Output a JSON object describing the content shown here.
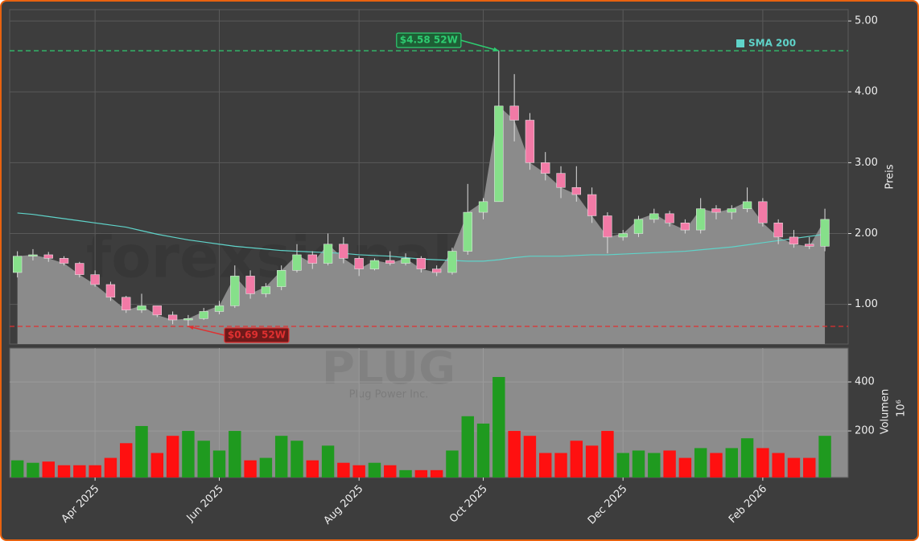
{
  "chart_data": {
    "type": "candlestick",
    "watermark": "forexsignale.trade",
    "symbol": "PLUG",
    "company": "Plug Power Inc.",
    "categories": [
      null,
      null,
      null,
      null,
      null,
      "Apr 2025",
      null,
      null,
      null,
      null,
      null,
      null,
      null,
      "Jun 2025",
      null,
      null,
      null,
      null,
      null,
      null,
      null,
      null,
      "Aug 2025",
      null,
      null,
      null,
      null,
      null,
      null,
      null,
      "Oct 2025",
      null,
      null,
      null,
      null,
      null,
      null,
      null,
      null,
      "Dec 2025",
      null,
      null,
      null,
      null,
      null,
      null,
      null,
      null,
      "Feb 2026",
      null,
      null,
      null,
      null,
      null
    ],
    "open": [
      1.45,
      1.68,
      1.7,
      1.65,
      1.58,
      1.42,
      1.28,
      1.1,
      0.92,
      0.98,
      0.85,
      0.78,
      0.8,
      0.9,
      0.98,
      1.4,
      1.15,
      1.25,
      1.48,
      1.7,
      1.58,
      1.85,
      1.65,
      1.5,
      1.62,
      1.58,
      1.65,
      1.5,
      1.45,
      1.75,
      2.3,
      2.45,
      3.8,
      3.6,
      3.0,
      2.85,
      2.65,
      2.55,
      2.25,
      1.95,
      2.0,
      2.2,
      2.28,
      2.15,
      2.05,
      2.35,
      2.3,
      2.35,
      2.45,
      2.15,
      1.95,
      1.85,
      1.82,
      null
    ],
    "high": [
      1.75,
      1.78,
      1.74,
      1.68,
      1.6,
      1.48,
      1.32,
      1.12,
      1.15,
      0.98,
      0.9,
      0.85,
      0.95,
      1.05,
      1.55,
      1.48,
      1.3,
      1.55,
      1.85,
      1.75,
      2.0,
      1.95,
      1.68,
      1.65,
      1.75,
      1.72,
      1.68,
      1.55,
      1.8,
      2.7,
      2.5,
      4.58,
      4.25,
      3.7,
      3.15,
      2.95,
      2.95,
      2.65,
      2.3,
      2.05,
      2.25,
      2.35,
      2.32,
      2.2,
      2.5,
      2.4,
      2.4,
      2.65,
      2.5,
      2.2,
      2.05,
      1.95,
      2.35,
      null
    ],
    "low": [
      1.38,
      1.62,
      1.6,
      1.55,
      1.38,
      1.25,
      1.05,
      0.88,
      0.88,
      0.82,
      0.72,
      0.69,
      0.78,
      0.86,
      0.95,
      1.08,
      1.1,
      1.2,
      1.45,
      1.5,
      1.55,
      1.58,
      1.4,
      1.48,
      1.55,
      1.55,
      1.45,
      1.4,
      1.42,
      1.7,
      2.2,
      2.45,
      3.3,
      2.9,
      2.75,
      2.5,
      2.45,
      2.15,
      1.72,
      1.9,
      1.95,
      2.15,
      2.1,
      2.0,
      2.0,
      2.2,
      2.2,
      2.3,
      2.1,
      1.85,
      1.8,
      1.78,
      1.75,
      null
    ],
    "close": [
      1.68,
      1.7,
      1.65,
      1.58,
      1.42,
      1.28,
      1.1,
      0.92,
      0.98,
      0.85,
      0.78,
      0.8,
      0.9,
      0.98,
      1.4,
      1.15,
      1.25,
      1.48,
      1.7,
      1.58,
      1.85,
      1.65,
      1.5,
      1.62,
      1.58,
      1.65,
      1.5,
      1.45,
      1.75,
      2.3,
      2.45,
      3.8,
      3.6,
      3.0,
      2.85,
      2.65,
      2.55,
      2.25,
      1.95,
      2.0,
      2.2,
      2.28,
      2.15,
      2.05,
      2.35,
      2.3,
      2.35,
      2.45,
      2.15,
      1.95,
      1.85,
      1.82,
      2.2,
      null
    ],
    "up_color": "#86e08a",
    "down_color": "#f27aa6",
    "area_color": "#8b8b8b",
    "ylim": [
      0.44,
      5.16
    ],
    "yticks": [
      {
        "value": 1,
        "label": "1.00"
      },
      {
        "value": 2,
        "label": "2.00"
      },
      {
        "value": 3,
        "label": "3.00"
      },
      {
        "value": 4,
        "label": "4.00"
      },
      {
        "value": 5,
        "label": "5.00"
      }
    ],
    "ylabel": "Preis",
    "grid": true,
    "legend": "upper right",
    "series": [
      {
        "name": "SMA 200",
        "color": "#5fd3c9",
        "values": [
          2.29,
          2.27,
          2.24,
          2.21,
          2.18,
          2.15,
          2.12,
          2.09,
          2.04,
          1.99,
          1.95,
          1.91,
          1.88,
          1.85,
          1.82,
          1.8,
          1.78,
          1.76,
          1.75,
          1.74,
          1.73,
          1.72,
          1.7,
          1.69,
          1.68,
          1.66,
          1.64,
          1.63,
          1.62,
          1.61,
          1.61,
          1.63,
          1.66,
          1.68,
          1.68,
          1.68,
          1.69,
          1.7,
          1.7,
          1.71,
          1.72,
          1.73,
          1.74,
          1.75,
          1.77,
          1.79,
          1.81,
          1.84,
          1.87,
          1.9,
          1.93,
          1.96,
          1.99,
          null
        ]
      }
    ],
    "annotations": [
      {
        "text": "$4.58 52W",
        "value": 4.58,
        "color": "#2ecc71"
      },
      {
        "text": "$0.69 52W",
        "value": 0.69,
        "color": "#e03030"
      }
    ],
    "volume": {
      "values": [
        80,
        70,
        75,
        60,
        60,
        60,
        90,
        150,
        220,
        110,
        180,
        200,
        160,
        120,
        200,
        80,
        90,
        180,
        160,
        80,
        140,
        70,
        60,
        70,
        60,
        40,
        40,
        40,
        120,
        260,
        230,
        420,
        200,
        180,
        110,
        110,
        160,
        140,
        200,
        110,
        120,
        110,
        120,
        90,
        130,
        110,
        130,
        170,
        130,
        110,
        90,
        90,
        180,
        null
      ],
      "ylim": [
        10,
        538
      ],
      "yticks": [
        200,
        400
      ],
      "ylabel": "Volumen",
      "offset_label": "10⁶",
      "up_color": "#1f9a1f",
      "down_color": "#ff1010",
      "background": "#8c8c8c"
    }
  }
}
